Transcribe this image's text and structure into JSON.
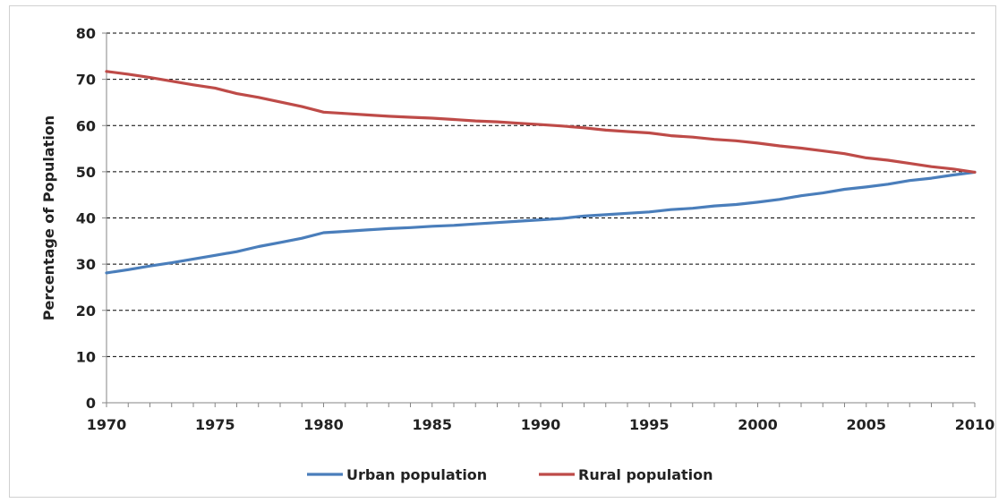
{
  "chart_data": {
    "type": "line",
    "title": "",
    "xlabel": "",
    "ylabel": "Percentage of Population",
    "xlim": [
      1970,
      2010
    ],
    "ylim": [
      0,
      80
    ],
    "x_ticks": [
      1970,
      1975,
      1980,
      1985,
      1990,
      1995,
      2000,
      2005,
      2010
    ],
    "y_ticks": [
      0,
      10,
      20,
      30,
      40,
      50,
      60,
      70,
      80
    ],
    "grid": "horizontal dashed",
    "legend_position": "bottom",
    "x": [
      1970,
      1971,
      1972,
      1973,
      1974,
      1975,
      1976,
      1977,
      1978,
      1979,
      1980,
      1981,
      1982,
      1983,
      1984,
      1985,
      1986,
      1987,
      1988,
      1989,
      1990,
      1991,
      1992,
      1993,
      1994,
      1995,
      1996,
      1997,
      1998,
      1999,
      2000,
      2001,
      2002,
      2003,
      2004,
      2005,
      2006,
      2007,
      2008,
      2009,
      2010
    ],
    "series": [
      {
        "name": "Urban population",
        "color": "#4a7ebb",
        "values": [
          28.1,
          28.8,
          29.6,
          30.3,
          31.1,
          31.9,
          32.7,
          33.8,
          34.7,
          35.6,
          36.8,
          37.1,
          37.4,
          37.7,
          37.9,
          38.2,
          38.4,
          38.7,
          39.0,
          39.3,
          39.6,
          39.9,
          40.4,
          40.7,
          41.0,
          41.3,
          41.8,
          42.1,
          42.6,
          42.9,
          43.4,
          44.0,
          44.8,
          45.4,
          46.2,
          46.7,
          47.3,
          48.1,
          48.6,
          49.3,
          49.9
        ]
      },
      {
        "name": "Rural population",
        "color": "#be4b48",
        "values": [
          71.7,
          71.1,
          70.4,
          69.6,
          68.8,
          68.1,
          66.9,
          66.1,
          65.1,
          64.1,
          62.9,
          62.6,
          62.3,
          62.0,
          61.8,
          61.6,
          61.3,
          61.0,
          60.8,
          60.5,
          60.2,
          59.9,
          59.5,
          59.0,
          58.7,
          58.4,
          57.8,
          57.5,
          57.0,
          56.7,
          56.2,
          55.6,
          55.1,
          54.5,
          53.9,
          53.0,
          52.5,
          51.8,
          51.1,
          50.6,
          49.9
        ]
      }
    ]
  }
}
